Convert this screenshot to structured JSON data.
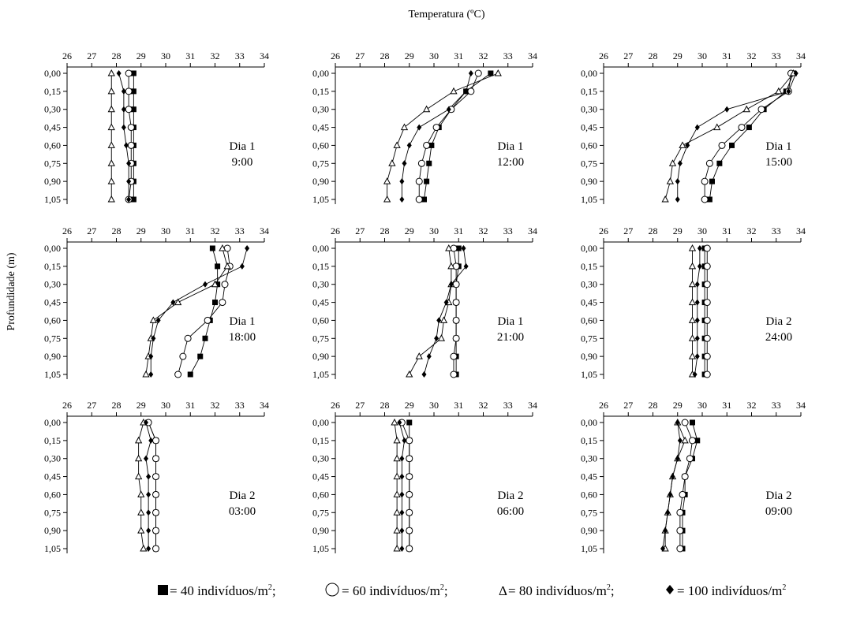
{
  "figure": {
    "xlabel": "Temperatura (ºC)",
    "ylabel": "Profundidade (m)",
    "legend": [
      {
        "symbol": "■",
        "marker": "square",
        "text": " = 40 indivíduos/m",
        "sup": "2",
        "sep": ";"
      },
      {
        "symbol": "◯",
        "marker": "circle",
        "text": " = 60 indivíduos/m",
        "sup": "2",
        "sep": ";"
      },
      {
        "symbol": "Δ",
        "marker": "triangle",
        "text": " = 80 indivíduos/m",
        "sup": "2",
        "sep": ";"
      },
      {
        "symbol": "♦",
        "marker": "diamond",
        "text": " = 100 indivíduos/m",
        "sup": "2",
        "sep": ""
      }
    ]
  },
  "chart_data": {
    "type": "line",
    "xlabel": "Temperatura (ºC)",
    "ylabel": "Profundidade (m)",
    "xlim": [
      26,
      34
    ],
    "xticks": [
      "26",
      "27",
      "28",
      "29",
      "30",
      "31",
      "32",
      "33",
      "34"
    ],
    "depths": [
      0.0,
      0.15,
      0.3,
      0.45,
      0.6,
      0.75,
      0.9,
      1.05
    ],
    "yticks": [
      "0,00",
      "0,15",
      "0,30",
      "0,45",
      "0,60",
      "0,75",
      "0,90",
      "1,05"
    ],
    "grid": false,
    "legend_position": "bottom",
    "series_names": [
      "40 indivíduos/m²",
      "60 indivíduos/m²",
      "80 indivíduos/m²",
      "100 indivíduos/m²"
    ],
    "panels": [
      {
        "day": "Dia 1",
        "time": "9:00",
        "series": [
          {
            "marker": "square",
            "values": [
              28.7,
              28.7,
              28.7,
              28.7,
              28.7,
              28.7,
              28.7,
              28.7
            ]
          },
          {
            "marker": "circle",
            "values": [
              28.5,
              28.5,
              28.5,
              28.6,
              28.6,
              28.6,
              28.6,
              28.5
            ]
          },
          {
            "marker": "triangle",
            "values": [
              27.8,
              27.8,
              27.8,
              27.8,
              27.8,
              27.8,
              27.8,
              27.8
            ]
          },
          {
            "marker": "diamond",
            "values": [
              28.1,
              28.3,
              28.3,
              28.3,
              28.4,
              28.5,
              28.5,
              28.5
            ]
          }
        ]
      },
      {
        "day": "Dia 1",
        "time": "12:00",
        "series": [
          {
            "marker": "square",
            "values": [
              32.3,
              31.3,
              30.7,
              30.2,
              29.9,
              29.8,
              29.7,
              29.6
            ]
          },
          {
            "marker": "circle",
            "values": [
              31.8,
              31.5,
              30.7,
              30.1,
              29.7,
              29.5,
              29.4,
              29.4
            ]
          },
          {
            "marker": "triangle",
            "values": [
              32.6,
              30.8,
              29.7,
              28.8,
              28.5,
              28.3,
              28.1,
              28.1
            ]
          },
          {
            "marker": "diamond",
            "values": [
              31.5,
              31.3,
              30.6,
              29.4,
              29.0,
              28.8,
              28.7,
              28.7
            ]
          }
        ]
      },
      {
        "day": "Dia 1",
        "time": "15:00",
        "series": [
          {
            "marker": "square",
            "values": [
              33.7,
              33.4,
              32.5,
              31.9,
              31.2,
              30.7,
              30.4,
              30.3
            ]
          },
          {
            "marker": "circle",
            "values": [
              33.6,
              33.5,
              32.4,
              31.6,
              30.8,
              30.3,
              30.1,
              30.1
            ]
          },
          {
            "marker": "triangle",
            "values": [
              33.7,
              33.1,
              31.8,
              30.6,
              29.2,
              28.8,
              28.7,
              28.5
            ]
          },
          {
            "marker": "diamond",
            "values": [
              33.8,
              33.5,
              31.0,
              29.8,
              29.4,
              29.1,
              29.0,
              29.0
            ]
          }
        ]
      },
      {
        "day": "Dia 1",
        "time": "18:00",
        "series": [
          {
            "marker": "square",
            "values": [
              31.9,
              32.1,
              32.1,
              32.0,
              31.8,
              31.6,
              31.4,
              31.0
            ]
          },
          {
            "marker": "circle",
            "values": [
              32.5,
              32.6,
              32.4,
              32.3,
              31.7,
              30.9,
              30.7,
              30.5
            ]
          },
          {
            "marker": "triangle",
            "values": [
              32.3,
              32.5,
              32.0,
              30.5,
              29.5,
              29.4,
              29.3,
              29.2
            ]
          },
          {
            "marker": "diamond",
            "values": [
              33.3,
              33.1,
              31.6,
              30.3,
              29.7,
              29.5,
              29.4,
              29.4
            ]
          }
        ]
      },
      {
        "day": "Dia 1",
        "time": "21:00",
        "series": [
          {
            "marker": "square",
            "values": [
              31.0,
              31.0,
              30.9,
              30.9,
              30.9,
              30.9,
              30.9,
              30.9
            ]
          },
          {
            "marker": "circle",
            "values": [
              30.8,
              30.9,
              30.9,
              30.9,
              30.9,
              30.9,
              30.8,
              30.8
            ]
          },
          {
            "marker": "triangle",
            "values": [
              30.6,
              30.7,
              30.7,
              30.6,
              30.4,
              30.3,
              29.4,
              29.0
            ]
          },
          {
            "marker": "diamond",
            "values": [
              31.2,
              31.3,
              30.7,
              30.5,
              30.2,
              30.1,
              29.8,
              29.6
            ]
          }
        ]
      },
      {
        "day": "Dia 2",
        "time": "24:00",
        "series": [
          {
            "marker": "square",
            "values": [
              30.1,
              30.1,
              30.1,
              30.1,
              30.1,
              30.1,
              30.1,
              30.1
            ]
          },
          {
            "marker": "circle",
            "values": [
              30.2,
              30.2,
              30.2,
              30.2,
              30.2,
              30.2,
              30.2,
              30.2
            ]
          },
          {
            "marker": "triangle",
            "values": [
              29.6,
              29.6,
              29.6,
              29.6,
              29.6,
              29.6,
              29.6,
              29.6
            ]
          },
          {
            "marker": "diamond",
            "values": [
              29.9,
              29.9,
              29.8,
              29.8,
              29.8,
              29.8,
              29.8,
              29.7
            ]
          }
        ]
      },
      {
        "day": "Dia 2",
        "time": "03:00",
        "series": [
          {
            "marker": "square",
            "values": [
              29.3,
              29.6,
              29.6,
              29.6,
              29.6,
              29.6,
              29.6,
              29.6
            ]
          },
          {
            "marker": "circle",
            "values": [
              29.3,
              29.6,
              29.6,
              29.6,
              29.6,
              29.6,
              29.6,
              29.6
            ]
          },
          {
            "marker": "triangle",
            "values": [
              29.1,
              28.9,
              28.9,
              28.9,
              29.0,
              29.0,
              29.0,
              29.1
            ]
          },
          {
            "marker": "diamond",
            "values": [
              29.2,
              29.4,
              29.2,
              29.3,
              29.3,
              29.3,
              29.3,
              29.3
            ]
          }
        ]
      },
      {
        "day": "Dia 2",
        "time": "06:00",
        "series": [
          {
            "marker": "square",
            "values": [
              29.0,
              29.0,
              29.0,
              29.0,
              29.0,
              29.0,
              29.0,
              29.0
            ]
          },
          {
            "marker": "circle",
            "values": [
              28.7,
              29.0,
              29.0,
              29.0,
              29.0,
              29.0,
              29.0,
              29.0
            ]
          },
          {
            "marker": "triangle",
            "values": [
              28.4,
              28.5,
              28.5,
              28.5,
              28.5,
              28.5,
              28.5,
              28.5
            ]
          },
          {
            "marker": "diamond",
            "values": [
              28.6,
              28.8,
              28.7,
              28.7,
              28.7,
              28.7,
              28.7,
              28.7
            ]
          }
        ]
      },
      {
        "day": "Dia 2",
        "time": "09:00",
        "series": [
          {
            "marker": "square",
            "values": [
              29.6,
              29.8,
              29.6,
              29.3,
              29.3,
              29.2,
              29.2,
              29.2
            ]
          },
          {
            "marker": "circle",
            "values": [
              29.3,
              29.6,
              29.5,
              29.3,
              29.2,
              29.1,
              29.1,
              29.1
            ]
          },
          {
            "marker": "triangle",
            "values": [
              29.0,
              29.3,
              29.0,
              28.8,
              28.7,
              28.6,
              28.5,
              28.5
            ]
          },
          {
            "marker": "diamond",
            "values": [
              29.0,
              29.1,
              29.0,
              28.8,
              28.7,
              28.6,
              28.5,
              28.4
            ]
          }
        ]
      }
    ]
  }
}
